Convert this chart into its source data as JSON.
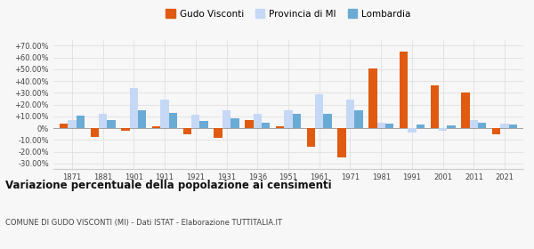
{
  "years": [
    1871,
    1881,
    1901,
    1911,
    1921,
    1931,
    1936,
    1951,
    1961,
    1971,
    1981,
    1991,
    2001,
    2011,
    2021
  ],
  "gudo_visconti": [
    3.5,
    -7.5,
    -2.5,
    1.5,
    -5.0,
    -8.5,
    7.0,
    1.5,
    -16.0,
    -25.0,
    51.0,
    65.0,
    36.5,
    30.0,
    -5.0
  ],
  "provincia_mi": [
    6.5,
    12.5,
    34.0,
    24.0,
    11.5,
    15.0,
    12.0,
    15.0,
    29.0,
    24.0,
    4.5,
    -3.5,
    -2.0,
    6.5,
    3.5
  ],
  "lombardia": [
    11.0,
    6.5,
    15.5,
    13.0,
    6.0,
    8.0,
    4.5,
    12.0,
    12.0,
    15.0,
    4.0,
    3.0,
    2.0,
    4.5,
    3.0
  ],
  "color_gudo": "#e05a10",
  "color_provincia": "#c5d8f5",
  "color_lombardia": "#6aabd6",
  "title": "Variazione percentuale della popolazione ai censimenti",
  "subtitle": "COMUNE DI GUDO VISCONTI (MI) - Dati ISTAT - Elaborazione TUTTITALIA.IT",
  "legend_labels": [
    "Gudo Visconti",
    "Provincia di MI",
    "Lombardia"
  ],
  "ylim": [
    -35,
    75
  ],
  "yticks": [
    -30,
    -20,
    -10,
    0,
    10,
    20,
    30,
    40,
    50,
    60,
    70
  ],
  "bar_width": 0.27,
  "background_color": "#f7f7f7",
  "grid_color": "#e0e0e0"
}
